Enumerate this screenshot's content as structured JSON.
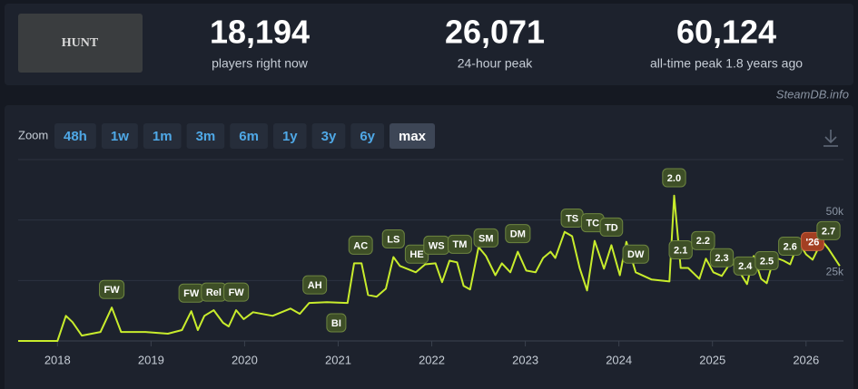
{
  "header": {
    "image_text": "HUNT",
    "stats": [
      {
        "value": "18,194",
        "label": "players right now"
      },
      {
        "value": "26,071",
        "label": "24-hour peak"
      },
      {
        "value": "60,124",
        "label": "all-time peak 1.8 years ago"
      }
    ]
  },
  "watermark": "SteamDB.info",
  "zoom": {
    "label": "Zoom",
    "buttons": [
      "48h",
      "1w",
      "1m",
      "3m",
      "6m",
      "1y",
      "3y",
      "6y",
      "max"
    ],
    "active": "max"
  },
  "chart_data": {
    "type": "line",
    "color": "#c8ec2c",
    "x": [
      2017.58,
      2018.0,
      2018.09,
      2018.16,
      2018.26,
      2018.46,
      2018.58,
      2018.68,
      2018.94,
      2019.18,
      2019.33,
      2019.43,
      2019.5,
      2019.57,
      2019.67,
      2019.77,
      2019.83,
      2019.91,
      2019.99,
      2020.09,
      2020.3,
      2020.49,
      2020.59,
      2020.69,
      2020.88,
      2021.1,
      2021.17,
      2021.25,
      2021.32,
      2021.41,
      2021.51,
      2021.59,
      2021.66,
      2021.83,
      2021.93,
      2022.04,
      2022.11,
      2022.19,
      2022.27,
      2022.34,
      2022.41,
      2022.5,
      2022.58,
      2022.68,
      2022.75,
      2022.84,
      2022.92,
      2023.01,
      2023.11,
      2023.19,
      2023.27,
      2023.32,
      2023.42,
      2023.5,
      2023.58,
      2023.66,
      2023.74,
      2023.84,
      2023.92,
      2024.01,
      2024.08,
      2024.18,
      2024.35,
      2024.54,
      2024.59,
      2024.66,
      2024.74,
      2024.86,
      2024.93,
      2025.01,
      2025.1,
      2025.2,
      2025.28,
      2025.37,
      2025.44,
      2025.52,
      2025.58,
      2025.66,
      2025.76,
      2025.83,
      2025.92,
      2026.0,
      2026.07,
      2026.17,
      2026.24,
      2026.36
    ],
    "values": [
      0,
      0,
      10400,
      7800,
      2200,
      3700,
      13800,
      3700,
      3700,
      3000,
      4500,
      12300,
      4500,
      10400,
      12700,
      7500,
      6000,
      12700,
      9000,
      11900,
      10400,
      13400,
      11200,
      15700,
      16000,
      15700,
      32100,
      32100,
      19000,
      18300,
      21600,
      34700,
      31000,
      28400,
      31700,
      32100,
      24300,
      33200,
      32500,
      22800,
      21300,
      38800,
      35100,
      27200,
      32100,
      28400,
      36900,
      29100,
      28400,
      34300,
      36900,
      34300,
      45100,
      43300,
      30200,
      20900,
      41400,
      29900,
      39600,
      27200,
      41000,
      28400,
      25400,
      24600,
      60100,
      30200,
      30200,
      25700,
      34000,
      28400,
      26900,
      32800,
      29100,
      23500,
      35100,
      25700,
      23900,
      34700,
      33200,
      31700,
      41000,
      35800,
      33600,
      41400,
      38100,
      31000
    ],
    "xlim": [
      2017.58,
      2026.4
    ],
    "xticks": [
      2018,
      2019,
      2020,
      2021,
      2022,
      2023,
      2024,
      2025,
      2026
    ],
    "ylim": [
      0,
      75000
    ],
    "yticks": [
      {
        "value": 25000,
        "label": "25k"
      },
      {
        "value": 50000,
        "label": "50k"
      }
    ],
    "grid": true,
    "annotations": [
      {
        "label": "FW",
        "x": 2018.58
      },
      {
        "label": "FW",
        "x": 2019.43
      },
      {
        "label": "Rel",
        "x": 2019.67
      },
      {
        "label": "FW",
        "x": 2019.91
      },
      {
        "label": "AH",
        "x": 2020.75
      },
      {
        "label": "BI",
        "x": 2020.98
      },
      {
        "label": "AC",
        "x": 2021.24
      },
      {
        "label": "LS",
        "x": 2021.59
      },
      {
        "label": "HE",
        "x": 2021.84
      },
      {
        "label": "WS",
        "x": 2022.05
      },
      {
        "label": "TM",
        "x": 2022.3
      },
      {
        "label": "SM",
        "x": 2022.58
      },
      {
        "label": "DM",
        "x": 2022.92
      },
      {
        "label": "TS",
        "x": 2023.5
      },
      {
        "label": "TC",
        "x": 2023.72
      },
      {
        "label": "TD",
        "x": 2023.92
      },
      {
        "label": "DW",
        "x": 2024.18
      },
      {
        "label": "2.0",
        "x": 2024.59
      },
      {
        "label": "2.1",
        "x": 2024.66
      },
      {
        "label": "2.2",
        "x": 2024.9
      },
      {
        "label": "2.3",
        "x": 2025.1
      },
      {
        "label": "2.4",
        "x": 2025.35
      },
      {
        "label": "2.5",
        "x": 2025.58
      },
      {
        "label": "2.6",
        "x": 2025.83
      },
      {
        "label": "'26",
        "x": 2026.07,
        "color": "#a33f22"
      },
      {
        "label": "2.7",
        "x": 2026.24
      }
    ]
  }
}
